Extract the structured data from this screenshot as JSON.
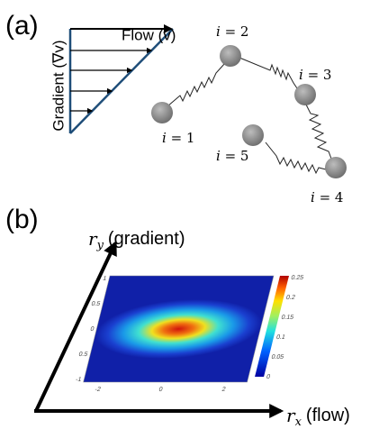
{
  "panel_a": {
    "label": "(a)",
    "flow_label": "Flow (v)",
    "gradient_label": "Gradient (∇v)",
    "beads": [
      {
        "symbol": "i",
        "text": "= 1"
      },
      {
        "symbol": "i",
        "text": "= 2"
      },
      {
        "symbol": "i",
        "text": "= 3"
      },
      {
        "symbol": "i",
        "text": "= 4"
      },
      {
        "symbol": "i",
        "text": "= 5"
      }
    ]
  },
  "panel_b": {
    "label": "(b)",
    "y_axis": {
      "symbol": "r",
      "subscript": "y",
      "text": "(gradient)"
    },
    "x_axis": {
      "symbol": "r",
      "subscript": "x",
      "text": "(flow)"
    },
    "heatmap": {
      "yticks": [
        "1",
        "0.5",
        "0",
        "0.5",
        "-1"
      ],
      "xticks": [
        "-2",
        "0",
        "2"
      ],
      "colorbar_ticks": [
        "0.25",
        "0.2",
        "0.15",
        "0.1",
        "0.05",
        "0"
      ]
    }
  }
}
